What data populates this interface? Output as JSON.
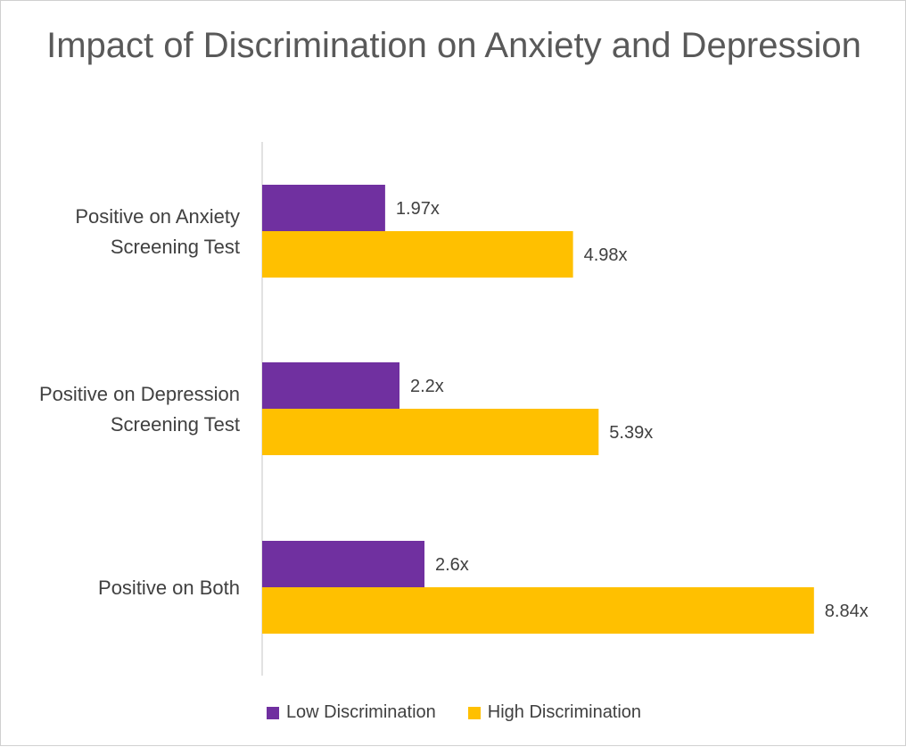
{
  "chart_data": {
    "type": "bar",
    "orientation": "horizontal",
    "title": "Impact of Discrimination on Anxiety and Depression",
    "categories": [
      [
        "Positive on Anxiety",
        "Screening Test"
      ],
      [
        "Positive on Depression",
        "Screening Test"
      ],
      [
        "Positive on Both"
      ]
    ],
    "series": [
      {
        "name": "Low Discrimination",
        "color": "#7030a0",
        "values": [
          1.97,
          2.2,
          2.6
        ],
        "labels": [
          "1.97x",
          "2.2x",
          "2.6x"
        ]
      },
      {
        "name": "High Discrimination",
        "color": "#ffc000",
        "values": [
          4.98,
          5.39,
          8.84
        ],
        "labels": [
          "4.98x",
          "5.39x",
          "8.84x"
        ]
      }
    ],
    "xlim": [
      0,
      10
    ],
    "grid": false,
    "legend_position": "bottom"
  }
}
